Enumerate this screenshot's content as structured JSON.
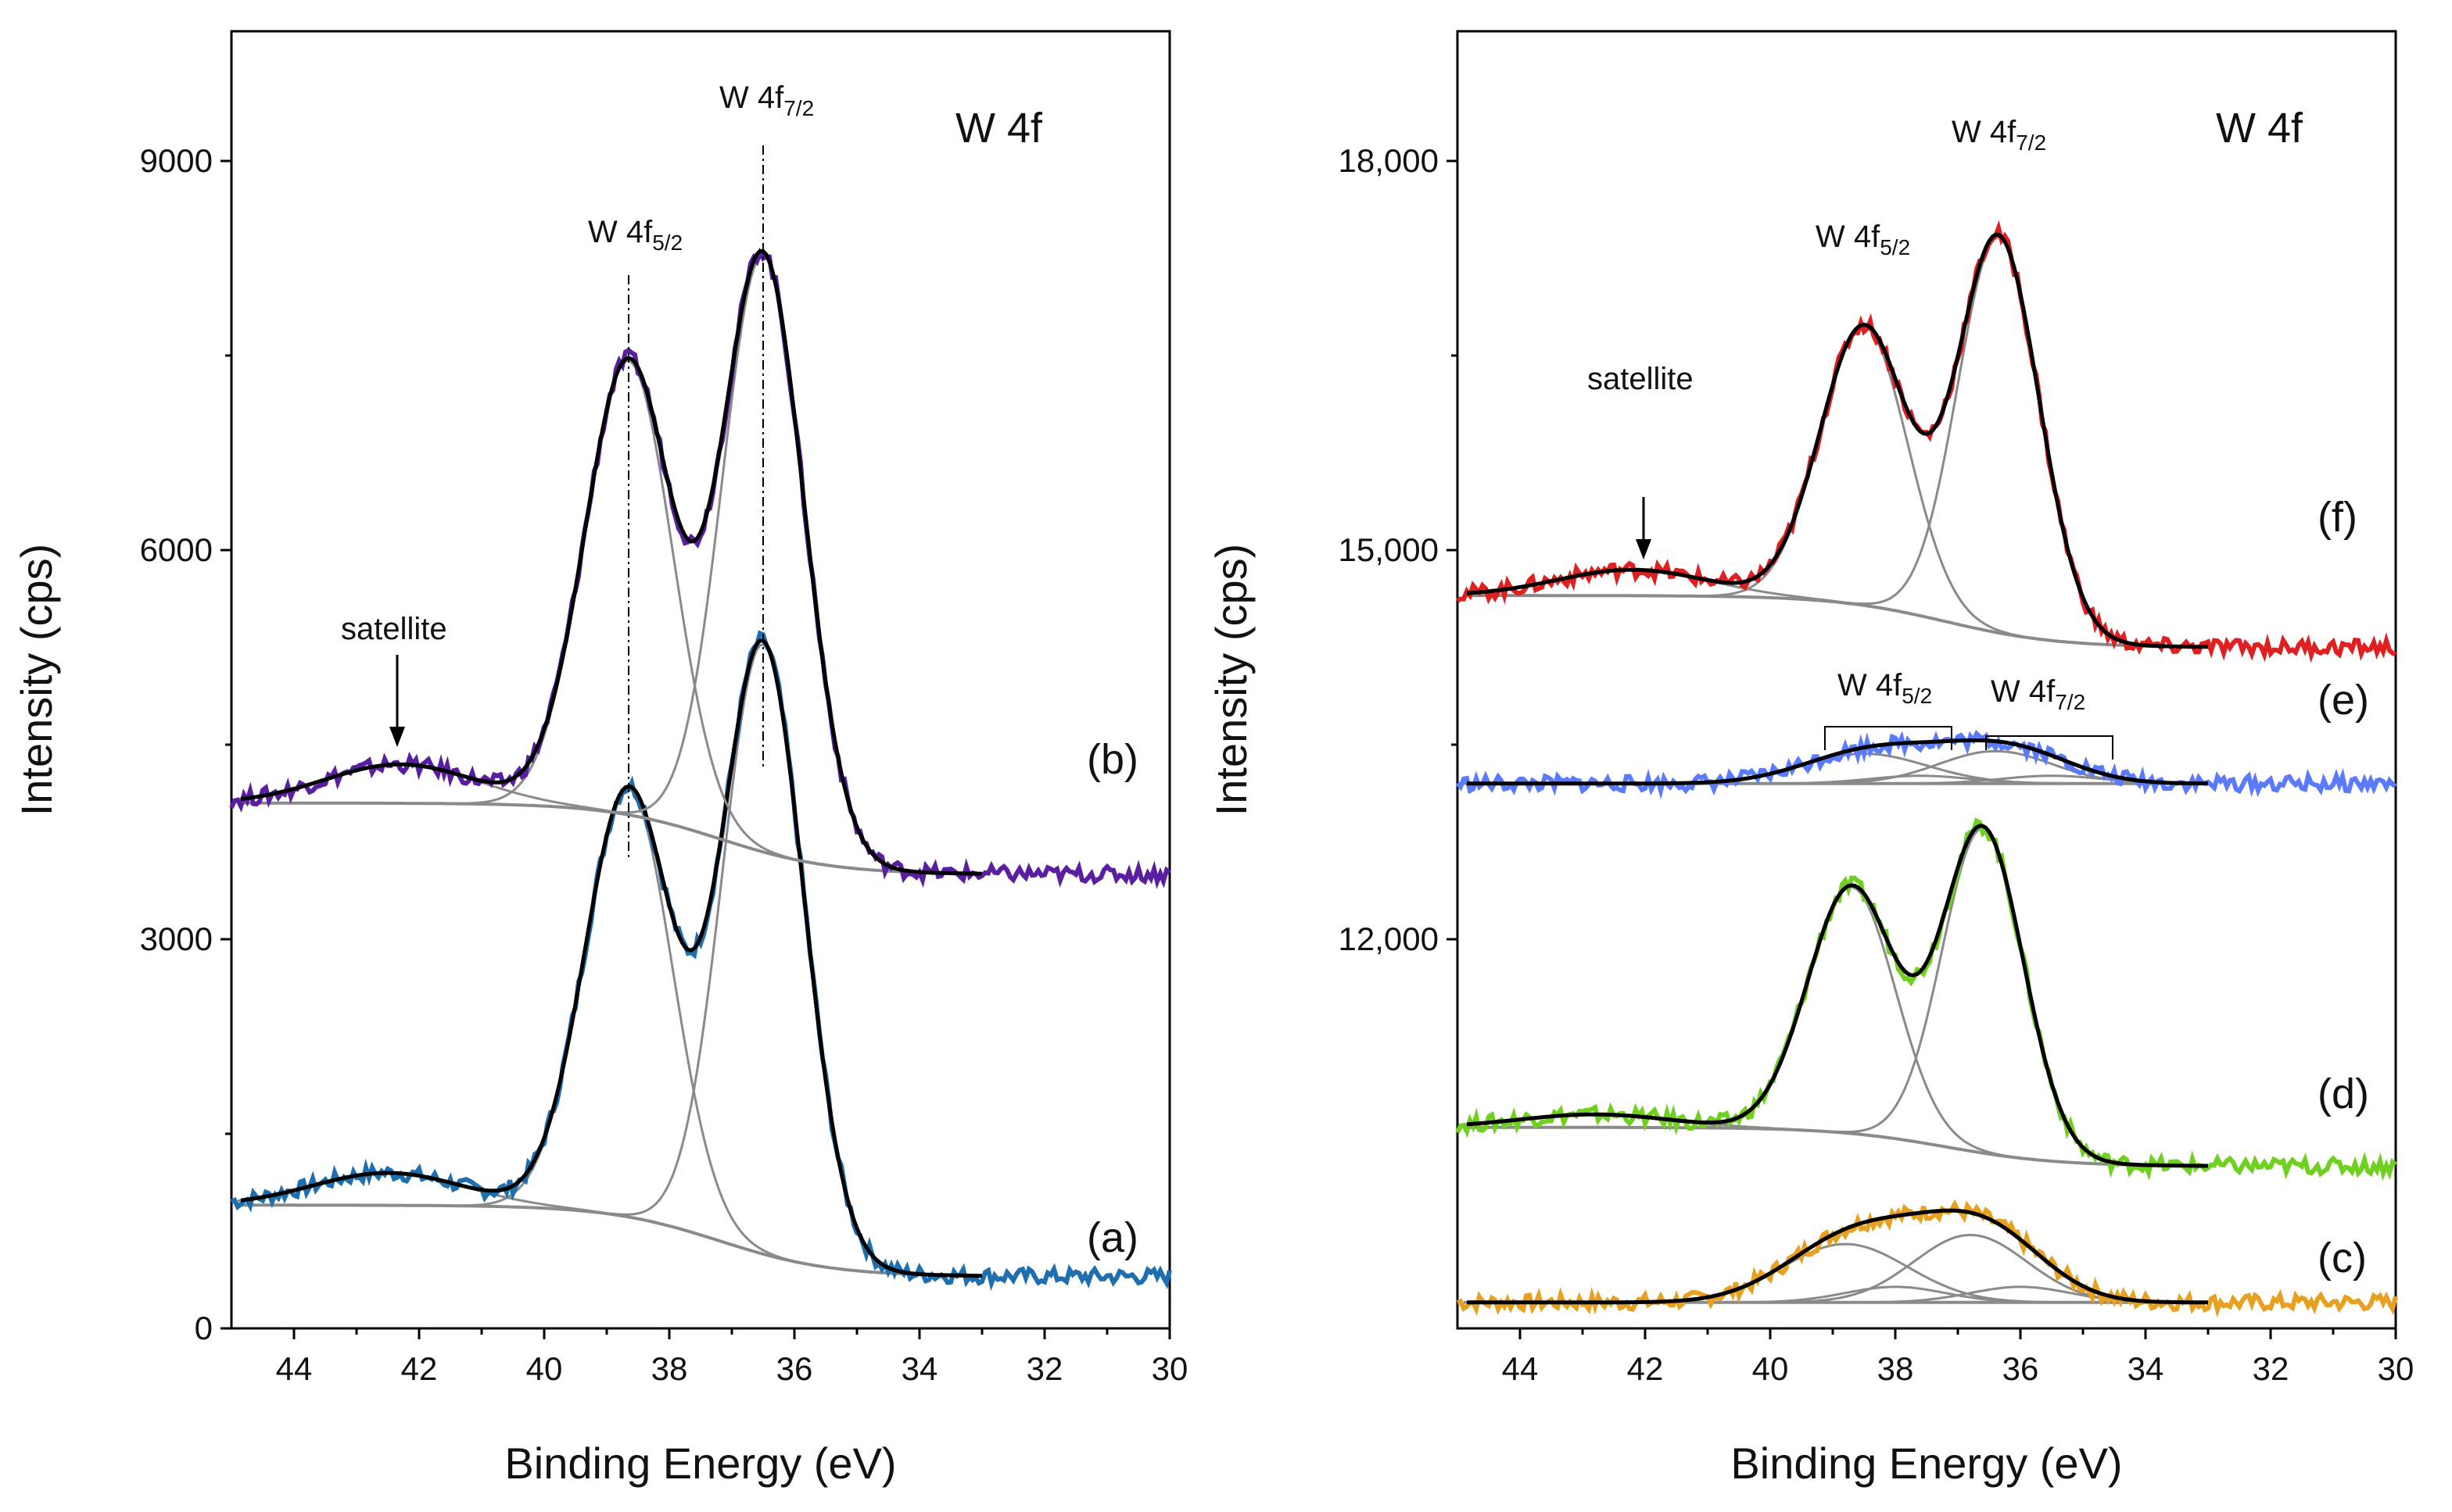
{
  "chart_data": [
    {
      "type": "line",
      "panel": "left",
      "title": "W 4f",
      "xlabel": "Binding Energy (eV)",
      "ylabel": "Intensity (cps)",
      "xlim": [
        45,
        30
      ],
      "ylim": [
        0,
        10000
      ],
      "xticks": [
        44,
        42,
        40,
        38,
        36,
        34,
        32,
        30
      ],
      "yticks": [
        0,
        3000,
        6000,
        9000
      ],
      "ytick_labels": [
        "0",
        "3000",
        "6000",
        "9000"
      ],
      "annotations": {
        "peak_52_label": "W 4f",
        "peak_52_sub": "5/2",
        "peak_72_label": "W 4f",
        "peak_72_sub": "7/2",
        "satellite": "satellite"
      },
      "series": [
        {
          "name": "(a)",
          "color": "#1f6fb0",
          "baseline": 950,
          "tail": 400,
          "peaks": [
            [
              38.65,
              3300,
              0.7
            ],
            [
              36.5,
              4700,
              0.65
            ],
            [
              42.5,
              250,
              1.2
            ]
          ]
        },
        {
          "name": "(b)",
          "color": "#5a1fa0",
          "baseline": 4050,
          "tail": 3500,
          "peaks": [
            [
              38.65,
              3500,
              0.7
            ],
            [
              36.5,
              4600,
              0.65
            ],
            [
              42.3,
              300,
              1.2
            ]
          ]
        }
      ],
      "series_labels": [
        "(a)",
        "(b)"
      ]
    },
    {
      "type": "line",
      "panel": "right",
      "title": "W 4f",
      "xlabel": "Binding Energy (eV)",
      "ylabel": "Intensity (cps)",
      "xlim": [
        45,
        30
      ],
      "ylim": [
        9000,
        19000
      ],
      "xticks": [
        44,
        42,
        40,
        38,
        36,
        34,
        32,
        30
      ],
      "yticks": [
        12000,
        15000,
        18000
      ],
      "ytick_labels": [
        "12,000",
        "15,000",
        "18,000"
      ],
      "annotations": {
        "peak_52_label": "W 4f",
        "peak_52_sub": "5/2",
        "peak_72_label": "W 4f",
        "peak_72_sub": "7/2",
        "e_52_label": "W 4f",
        "e_52_sub": "5/2",
        "e_72_label": "W 4f",
        "e_72_sub": "7/2",
        "satellite": "satellite"
      },
      "series": [
        {
          "name": "(c)",
          "color": "#e8a020",
          "baseline": 9200,
          "tail": 9200,
          "peaks": [
            [
              38.8,
              450,
              1.0
            ],
            [
              36.8,
              520,
              0.9
            ],
            [
              38.0,
              120,
              0.8
            ],
            [
              36.0,
              120,
              0.8
            ]
          ]
        },
        {
          "name": "(d)",
          "color": "#6fd020",
          "baseline": 10550,
          "tail": 10250,
          "peaks": [
            [
              38.7,
              1900,
              0.7
            ],
            [
              36.6,
              2500,
              0.65
            ],
            [
              42.8,
              100,
              1.2
            ]
          ]
        },
        {
          "name": "(e)",
          "color": "#5a7aff",
          "baseline": 13200,
          "tail": 13200,
          "peaks": [
            [
              38.5,
              230,
              1.0
            ],
            [
              36.4,
              250,
              0.9
            ],
            [
              37.6,
              60,
              0.8
            ],
            [
              35.5,
              60,
              0.8
            ]
          ]
        },
        {
          "name": "(f)",
          "color": "#e02020",
          "baseline": 14650,
          "tail": 14250,
          "peaks": [
            [
              38.5,
              2150,
              0.7
            ],
            [
              36.35,
              3050,
              0.65
            ],
            [
              42.2,
              200,
              1.2
            ]
          ]
        }
      ],
      "series_labels": [
        "(c)",
        "(d)",
        "(e)",
        "(f)"
      ]
    }
  ]
}
